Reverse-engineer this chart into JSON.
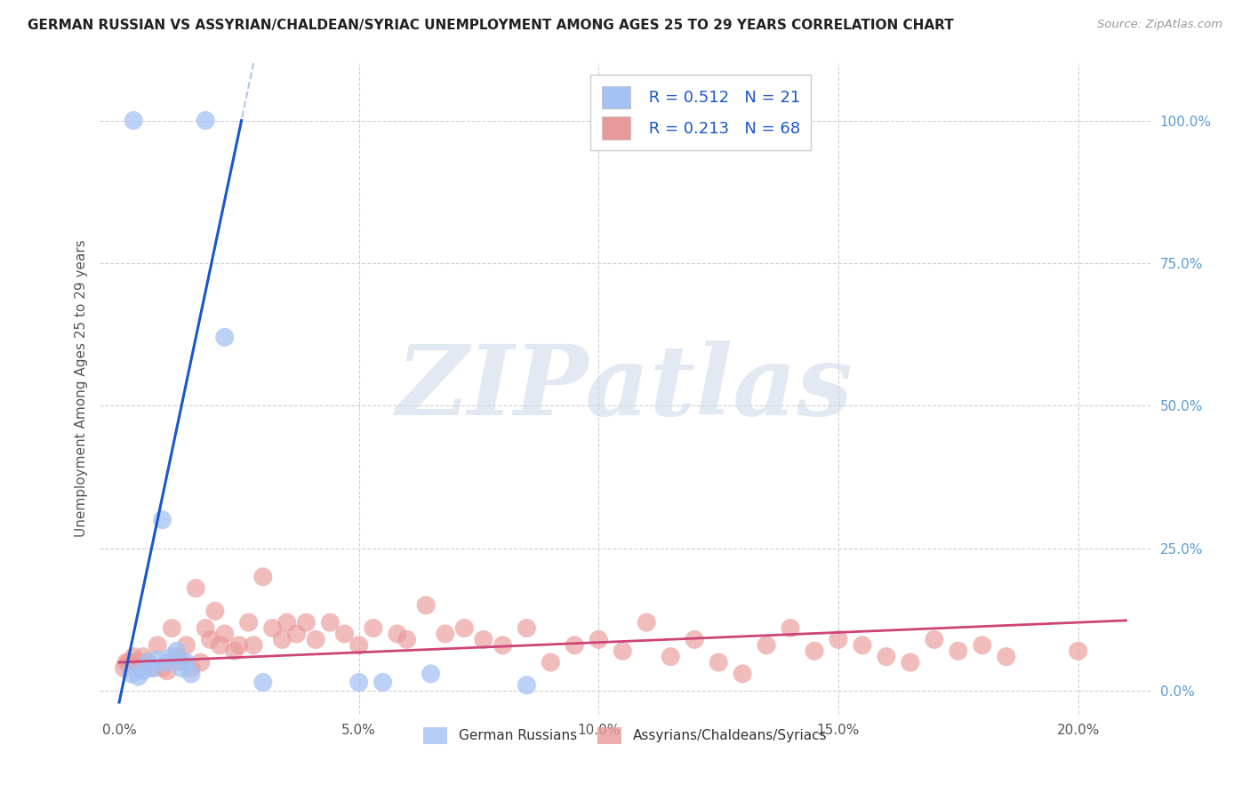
{
  "title": "GERMAN RUSSIAN VS ASSYRIAN/CHALDEAN/SYRIAC UNEMPLOYMENT AMONG AGES 25 TO 29 YEARS CORRELATION CHART",
  "source": "Source: ZipAtlas.com",
  "ylabel": "Unemployment Among Ages 25 to 29 years",
  "xlabel_ticks": [
    "0.0%",
    "5.0%",
    "10.0%",
    "15.0%",
    "20.0%"
  ],
  "xlabel_vals": [
    0.0,
    5.0,
    10.0,
    15.0,
    20.0
  ],
  "ylabel_ticks": [
    "0.0%",
    "25.0%",
    "50.0%",
    "75.0%",
    "100.0%"
  ],
  "ylabel_vals": [
    0.0,
    25.0,
    50.0,
    75.0,
    100.0
  ],
  "xlim": [
    -0.4,
    21.5
  ],
  "ylim": [
    -4.0,
    110.0
  ],
  "blue_R": "0.512",
  "blue_N": "21",
  "pink_R": "0.213",
  "pink_N": "68",
  "blue_color": "#a4c2f4",
  "pink_color": "#ea9999",
  "blue_line_color": "#1a56cc",
  "pink_line_color": "#cc4477",
  "dashed_color": "#b4c7e7",
  "legend_label_blue": "German Russians",
  "legend_label_pink": "Assyrians/Chaldeans/Syriacs",
  "legend_text_color": "#1a56cc",
  "watermark_text": "ZIPatlas",
  "watermark_color": "#cdd8e8",
  "blue_x": [
    0.3,
    1.8,
    0.5,
    0.6,
    0.7,
    0.8,
    0.9,
    1.0,
    1.1,
    1.2,
    1.3,
    1.4,
    1.5,
    2.2,
    0.4,
    3.0,
    5.0,
    5.5,
    6.5,
    8.5,
    0.25
  ],
  "blue_y": [
    100.0,
    100.0,
    3.5,
    5.0,
    4.0,
    5.5,
    30.0,
    5.0,
    6.0,
    7.0,
    4.0,
    5.0,
    3.0,
    62.0,
    2.5,
    1.5,
    1.5,
    1.5,
    3.0,
    1.0,
    3.0
  ],
  "pink_x": [
    0.1,
    0.15,
    0.2,
    0.3,
    0.35,
    0.4,
    0.5,
    0.6,
    0.7,
    0.8,
    0.9,
    1.0,
    1.1,
    1.2,
    1.3,
    1.4,
    1.5,
    1.6,
    1.7,
    1.8,
    1.9,
    2.0,
    2.1,
    2.2,
    2.4,
    2.5,
    2.7,
    2.8,
    3.0,
    3.2,
    3.4,
    3.5,
    3.7,
    3.9,
    4.1,
    4.4,
    4.7,
    5.0,
    5.3,
    5.8,
    6.0,
    6.4,
    6.8,
    7.2,
    7.6,
    8.0,
    8.5,
    9.0,
    9.5,
    10.0,
    10.5,
    11.0,
    11.5,
    12.0,
    12.5,
    13.0,
    13.5,
    14.0,
    14.5,
    15.0,
    15.5,
    16.0,
    16.5,
    17.0,
    17.5,
    18.0,
    18.5,
    20.0
  ],
  "pink_y": [
    4.0,
    5.0,
    5.0,
    6.0,
    5.0,
    4.0,
    6.0,
    5.0,
    4.0,
    8.0,
    4.0,
    3.5,
    11.0,
    6.0,
    5.0,
    8.0,
    4.0,
    18.0,
    5.0,
    11.0,
    9.0,
    14.0,
    8.0,
    10.0,
    7.0,
    8.0,
    12.0,
    8.0,
    20.0,
    11.0,
    9.0,
    12.0,
    10.0,
    12.0,
    9.0,
    12.0,
    10.0,
    8.0,
    11.0,
    10.0,
    9.0,
    15.0,
    10.0,
    11.0,
    9.0,
    8.0,
    11.0,
    5.0,
    8.0,
    9.0,
    7.0,
    12.0,
    6.0,
    9.0,
    5.0,
    3.0,
    8.0,
    11.0,
    7.0,
    9.0,
    8.0,
    6.0,
    5.0,
    9.0,
    7.0,
    8.0,
    6.0,
    7.0
  ],
  "blue_line_x": [
    0.0,
    2.5
  ],
  "blue_line_y": [
    0.0,
    100.0
  ],
  "dash_line_x": [
    1.5,
    4.2
  ],
  "dash_line_y": [
    50.0,
    105.0
  ]
}
